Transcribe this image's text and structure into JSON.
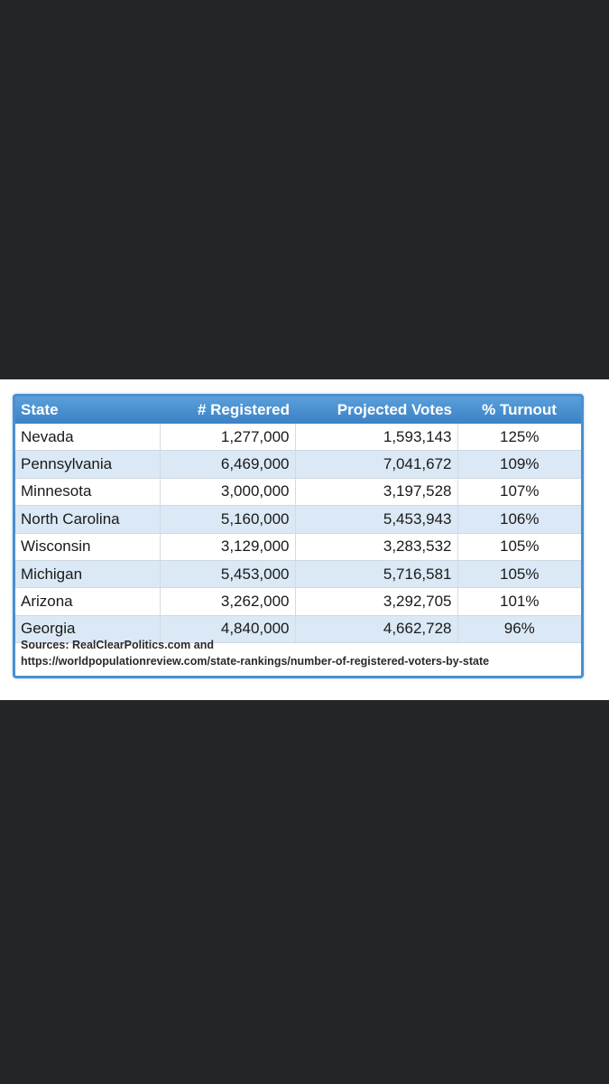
{
  "table": {
    "headers": [
      "State",
      "# Registered",
      "Projected Votes",
      "% Turnout"
    ],
    "rows": [
      {
        "state": "Nevada",
        "registered": "1,277,000",
        "projected": "1,593,143",
        "turnout": "125%"
      },
      {
        "state": "Pennsylvania",
        "registered": "6,469,000",
        "projected": "7,041,672",
        "turnout": "109%"
      },
      {
        "state": "Minnesota",
        "registered": "3,000,000",
        "projected": "3,197,528",
        "turnout": "107%"
      },
      {
        "state": "North Carolina",
        "registered": "5,160,000",
        "projected": "5,453,943",
        "turnout": "106%"
      },
      {
        "state": "Wisconsin",
        "registered": "3,129,000",
        "projected": "3,283,532",
        "turnout": "105%"
      },
      {
        "state": "Michigan",
        "registered": "5,453,000",
        "projected": "5,716,581",
        "turnout": "105%"
      },
      {
        "state": "Arizona",
        "registered": "3,262,000",
        "projected": "3,292,705",
        "turnout": "101%"
      },
      {
        "state": "Georgia",
        "registered": "4,840,000",
        "projected": "4,662,728",
        "turnout": "96%"
      }
    ]
  },
  "sources": {
    "line1": "Sources: RealClearPolitics.com and",
    "line2": "https://worldpopulationreview.com/state-rankings/number-of-registered-voters-by-state"
  },
  "colors": {
    "background": "#232628",
    "header": "#4a8fd0",
    "row_alt": "#dbe8f5"
  }
}
